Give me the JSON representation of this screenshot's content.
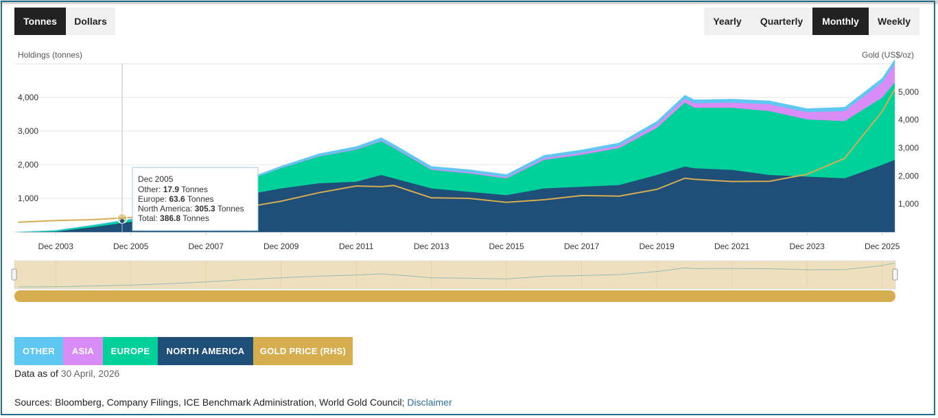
{
  "units_toggle": [
    {
      "label": "Tonnes",
      "active": true
    },
    {
      "label": "Dollars",
      "active": false
    }
  ],
  "period_toggle": [
    {
      "label": "Yearly",
      "active": false
    },
    {
      "label": "Quarterly",
      "active": false
    },
    {
      "label": "Monthly",
      "active": true
    },
    {
      "label": "Weekly",
      "active": false
    }
  ],
  "chart_data": {
    "type": "area",
    "ylabel": "Holdings (tonnes)",
    "y2label": "Gold (US$/oz)",
    "ylim": [
      0,
      5000
    ],
    "y2lim": [
      0,
      6000
    ],
    "yticks": [
      "1,000",
      "2,000",
      "3,000",
      "4,000"
    ],
    "y2ticks": [
      "1,000",
      "2,000",
      "3,000",
      "4,000",
      "5,000"
    ],
    "xticks": [
      "Dec 2003",
      "Dec 2005",
      "Dec 2007",
      "Dec 2009",
      "Dec 2011",
      "Dec 2013",
      "Dec 2015",
      "Dec 2017",
      "Dec 2019",
      "Dec 2021",
      "Dec 2023",
      "Dec 2025"
    ],
    "x": [
      "Dec 2002",
      "Dec 2003",
      "Dec 2004",
      "Dec 2005",
      "Dec 2006",
      "Dec 2007",
      "Dec 2008",
      "Dec 2009",
      "Dec 2010",
      "Dec 2011",
      "Aug 2012",
      "Dec 2012",
      "Dec 2013",
      "Dec 2014",
      "Dec 2015",
      "Dec 2016",
      "Dec 2017",
      "Dec 2018",
      "Dec 2019",
      "Sep 2020",
      "Dec 2020",
      "Dec 2021",
      "Dec 2022",
      "Dec 2023",
      "Dec 2024",
      "Dec 2025",
      "Apr 2026"
    ],
    "series": [
      {
        "name": "NORTH AMERICA",
        "color": "#1f4e79",
        "values": [
          0,
          15,
          150,
          305,
          500,
          800,
          1100,
          1300,
          1450,
          1500,
          1700,
          1600,
          1300,
          1200,
          1100,
          1300,
          1350,
          1400,
          1700,
          1950,
          1900,
          1850,
          1700,
          1650,
          1600,
          2000,
          2150
        ]
      },
      {
        "name": "EUROPE",
        "color": "#00d19a",
        "values": [
          0,
          30,
          50,
          64,
          150,
          250,
          400,
          600,
          800,
          950,
          1000,
          900,
          550,
          550,
          500,
          850,
          950,
          1100,
          1400,
          1900,
          1800,
          1850,
          1900,
          1700,
          1700,
          2000,
          2300
        ]
      },
      {
        "name": "ASIA",
        "color": "#d98cf5",
        "values": [
          0,
          0,
          0,
          0,
          0,
          0,
          5,
          10,
          15,
          20,
          25,
          25,
          30,
          35,
          40,
          50,
          60,
          70,
          100,
          120,
          130,
          150,
          200,
          220,
          300,
          450,
          550
        ]
      },
      {
        "name": "OTHER",
        "color": "#5ec8f2",
        "values": [
          0,
          5,
          10,
          18,
          25,
          30,
          40,
          50,
          60,
          70,
          80,
          80,
          70,
          70,
          70,
          80,
          80,
          80,
          90,
          100,
          100,
          100,
          100,
          100,
          110,
          120,
          130
        ]
      }
    ],
    "gold_price": {
      "name": "GOLD PRICE (RHS)",
      "color": "#d6ad4f",
      "values": [
        350,
        410,
        440,
        520,
        630,
        830,
        870,
        1100,
        1400,
        1640,
        1620,
        1660,
        1220,
        1200,
        1060,
        1150,
        1300,
        1280,
        1520,
        1920,
        1880,
        1800,
        1810,
        2060,
        2630,
        4300,
        5100
      ]
    },
    "tooltip": {
      "title": "Dec 2005",
      "rows": [
        {
          "label": "Other: ",
          "value": "17.9",
          "unit": " Tonnes"
        },
        {
          "label": "Europe: ",
          "value": "63.6",
          "unit": " Tonnes"
        },
        {
          "label": "North America: ",
          "value": "305.3",
          "unit": " Tonnes"
        },
        {
          "label": "Total: ",
          "value": "386.8",
          "unit": " Tonnes"
        }
      ]
    }
  },
  "legend": [
    {
      "label": "OTHER",
      "color": "#5ec8f2"
    },
    {
      "label": "ASIA",
      "color": "#d98cf5"
    },
    {
      "label": "EUROPE",
      "color": "#00d19a"
    },
    {
      "label": "NORTH AMERICA",
      "color": "#1f4e79"
    },
    {
      "label": "GOLD PRICE (RHS)",
      "color": "#d6ad4f"
    }
  ],
  "footer": {
    "data_as_of_label": "Data as of",
    "data_as_of_date": "30 April, 2026",
    "sources_label": "Sources: Bloomberg, Company Filings, ICE Benchmark Administration, World Gold Council;",
    "disclaimer_link": "Disclaimer"
  }
}
